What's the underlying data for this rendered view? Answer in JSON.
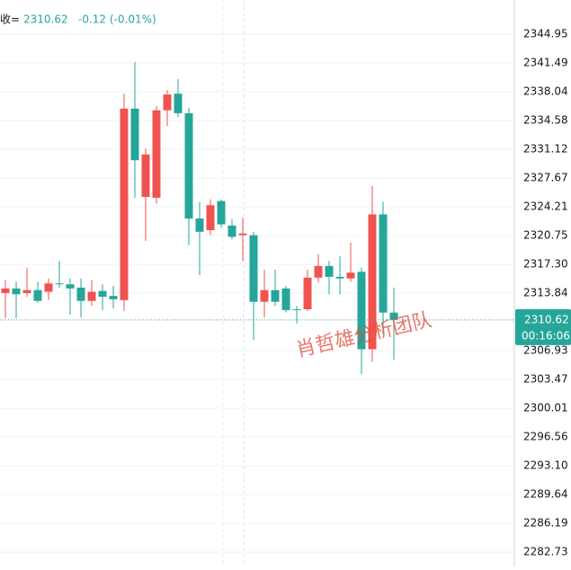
{
  "chart_data": {
    "type": "candlestick",
    "header": {
      "label": "收=",
      "close": "2310.62",
      "change": "-0.12 (-0.01%)"
    },
    "watermark": "肖哲雄分析团队",
    "countdown": "00:16:06",
    "up_color": "#ef5350",
    "down_color": "#26a69a",
    "ylim": [
      2281.01,
      2349.05
    ],
    "yticks": [
      2344.95,
      2341.49,
      2338.04,
      2334.58,
      2331.12,
      2327.67,
      2324.21,
      2320.75,
      {
        "value": 2317.3,
        "label": "2317.30"
      },
      2313.84,
      2306.93,
      2303.47,
      2300.01,
      2296.56,
      {
        "value": 2293.1,
        "label": "2293.10"
      },
      2289.64,
      2286.19,
      2282.73
    ],
    "grid": true,
    "open": [
      2313.85,
      2314.4,
      2313.85,
      2314.2,
      2314.0,
      2315.0,
      2314.9,
      2314.5,
      2312.9,
      2314.1,
      2313.5,
      2313.0,
      2336.0,
      2325.4,
      2325.3,
      2335.8,
      2337.8,
      2335.45,
      2322.8,
      2321.4,
      2324.9,
      2321.95,
      2320.8,
      2320.8,
      2312.8,
      2314.2,
      2314.4,
      2311.9,
      2311.9,
      2315.7,
      2317.1,
      2315.8,
      2315.6,
      2316.4,
      2307.1,
      2323.3,
      2311.5
    ],
    "high": [
      2315.4,
      2315.2,
      2316.9,
      2315.2,
      2315.6,
      2317.7,
      2315.6,
      2315.6,
      2315.4,
      2314.9,
      2314.7,
      2337.8,
      2341.6,
      2331.2,
      2336.3,
      2338.25,
      2339.55,
      2336.1,
      2324.8,
      2325.1,
      2325.1,
      2322.7,
      2322.9,
      2321.2,
      2316.65,
      2316.65,
      2314.7,
      2312.3,
      2316.65,
      2318.5,
      2317.7,
      2318.3,
      2319.9,
      2316.9,
      2326.7,
      2324.8,
      2314.5
    ],
    "low": [
      2310.8,
      2310.8,
      2313.4,
      2312.7,
      2313.0,
      2314.5,
      2311.25,
      2310.9,
      2312.3,
      2311.8,
      2312.0,
      2311.7,
      2325.3,
      2320.1,
      2324.6,
      2333.9,
      2335.0,
      2319.6,
      2316.0,
      2320.8,
      2321.7,
      2320.3,
      2317.7,
      2308.2,
      2310.9,
      2312.3,
      2311.5,
      2310.2,
      2311.7,
      2315.1,
      2313.7,
      2313.7,
      2315.2,
      2304.1,
      2305.6,
      2308.9,
      2305.85
    ],
    "close": [
      2314.4,
      2313.7,
      2314.2,
      2312.9,
      2315.0,
      2314.9,
      2314.4,
      2312.9,
      2314.0,
      2313.4,
      2313.1,
      2336.0,
      2329.8,
      2330.5,
      2335.8,
      2337.7,
      2335.45,
      2322.8,
      2321.2,
      2324.4,
      2322.1,
      2320.6,
      2321.0,
      2312.8,
      2314.2,
      2312.8,
      2311.8,
      2311.8,
      2315.7,
      2317.1,
      2315.8,
      2315.6,
      2316.3,
      2307.1,
      2323.3,
      2311.5,
      2310.62
    ]
  }
}
